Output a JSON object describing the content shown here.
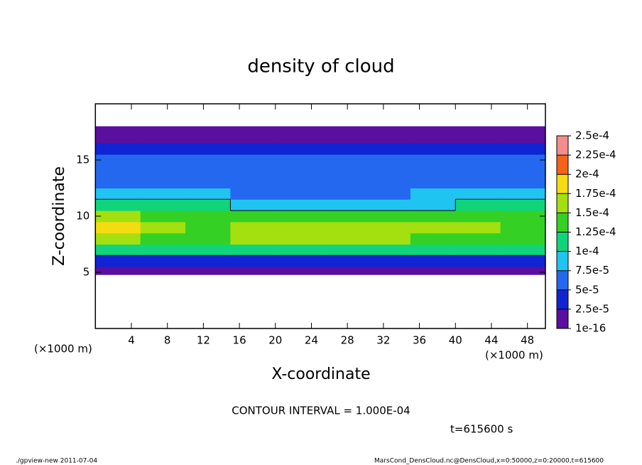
{
  "chart_data": {
    "type": "heatmap",
    "title": "density of cloud",
    "x_label": "X-coordinate",
    "y_label": "Z-coordinate",
    "x_unit_label": "(×1000 m)",
    "y_unit_label": "(×1000 m)",
    "contour_interval": {
      "value": 0.0001,
      "label": "CONTOUR INTERVAL = 1.000E-04"
    },
    "time_label": "t=615600 s",
    "footer_left": "./gpview-new  2011-07-04",
    "footer_right": "MarsCond_DensCloud.nc@DensCloud,x=0:50000,z=0:20000,t=615600",
    "xlim": [
      0,
      50
    ],
    "ylim": [
      0,
      20
    ],
    "xticks": [
      4,
      8,
      12,
      16,
      20,
      24,
      28,
      32,
      36,
      40,
      44,
      48
    ],
    "yticks": [
      5,
      10,
      15
    ],
    "x_edges": [
      0,
      5,
      10,
      15,
      20,
      25,
      30,
      35,
      40,
      45,
      50
    ],
    "z_edges": [
      4.8,
      5.5,
      6.5,
      7.5,
      8.5,
      9.5,
      10.5,
      11.5,
      12.5,
      13.5,
      14.5,
      15.5,
      16.5,
      17.2,
      18
    ],
    "values": [
      [
        1e-05,
        1e-05,
        1e-05,
        1e-05,
        1e-05,
        1e-05,
        1e-05,
        1e-05,
        1e-05,
        1e-05
      ],
      [
        3.5e-05,
        4e-05,
        4e-05,
        4e-05,
        3.5e-05,
        4e-05,
        3.5e-05,
        4e-05,
        4e-05,
        3.5e-05
      ],
      [
        0.000105,
        0.0001,
        0.000105,
        0.00011,
        0.000105,
        0.00011,
        0.000105,
        0.0001,
        0.000105,
        0.0001
      ],
      [
        0.00016,
        0.000145,
        0.00014,
        0.00015,
        0.000155,
        0.000155,
        0.00015,
        0.000145,
        0.000145,
        0.00014
      ],
      [
        0.00018,
        0.000155,
        0.000145,
        0.000155,
        0.00016,
        0.00016,
        0.000155,
        0.00015,
        0.00015,
        0.000145
      ],
      [
        0.00016,
        0.000135,
        0.00013,
        0.00013,
        0.000135,
        0.00014,
        0.00014,
        0.00013,
        0.00013,
        0.00013
      ],
      [
        0.000105,
        0.000105,
        0.0001,
        8e-05,
        8e-05,
        9e-05,
        9.5e-05,
        9e-05,
        0.0001,
        0.000105
      ],
      [
        8e-05,
        8e-05,
        7.5e-05,
        6.5e-05,
        6e-05,
        6.5e-05,
        7e-05,
        8e-05,
        8e-05,
        8e-05
      ],
      [
        7e-05,
        7e-05,
        7e-05,
        6e-05,
        5.5e-05,
        6e-05,
        6.5e-05,
        7e-05,
        7e-05,
        7e-05
      ],
      [
        6.5e-05,
        6.5e-05,
        6.5e-05,
        6e-05,
        5e-05,
        5.5e-05,
        6e-05,
        6.5e-05,
        6.5e-05,
        6.5e-05
      ],
      [
        6e-05,
        6e-05,
        6e-05,
        5.5e-05,
        5e-05,
        5.5e-05,
        5.5e-05,
        6e-05,
        6e-05,
        6e-05
      ],
      [
        4.5e-05,
        4.5e-05,
        4.5e-05,
        4e-05,
        4e-05,
        4e-05,
        4e-05,
        4.5e-05,
        4.5e-05,
        4.5e-05
      ],
      [
        2e-05,
        2e-05,
        2e-05,
        2e-05,
        2e-05,
        2e-05,
        2e-05,
        2e-05,
        2e-05,
        2e-05
      ],
      [
        5e-06,
        5e-06,
        5e-06,
        5e-06,
        5e-06,
        5e-06,
        5e-06,
        5e-06,
        5e-06,
        5e-06
      ]
    ],
    "colorbar_ticks": [
      {
        "value": 1e-16,
        "label": "1e-16"
      },
      {
        "value": 2.5e-05,
        "label": "2.5e-5"
      },
      {
        "value": 5e-05,
        "label": "5e-5"
      },
      {
        "value": 7.5e-05,
        "label": "7.5e-5"
      },
      {
        "value": 0.0001,
        "label": "1e-4"
      },
      {
        "value": 0.000125,
        "label": "1.25e-4"
      },
      {
        "value": 0.00015,
        "label": "1.5e-4"
      },
      {
        "value": 0.000175,
        "label": "1.75e-4"
      },
      {
        "value": 0.0002,
        "label": "2e-4"
      },
      {
        "value": 0.000225,
        "label": "2.25e-4"
      },
      {
        "value": 0.00025,
        "label": "2.5e-4"
      }
    ],
    "colors": [
      "#5a0f9e",
      "#1024d4",
      "#2468f0",
      "#20c4f0",
      "#10d47c",
      "#34d024",
      "#a4e010",
      "#f4dc10",
      "#f46418",
      "#f48c8c"
    ]
  }
}
